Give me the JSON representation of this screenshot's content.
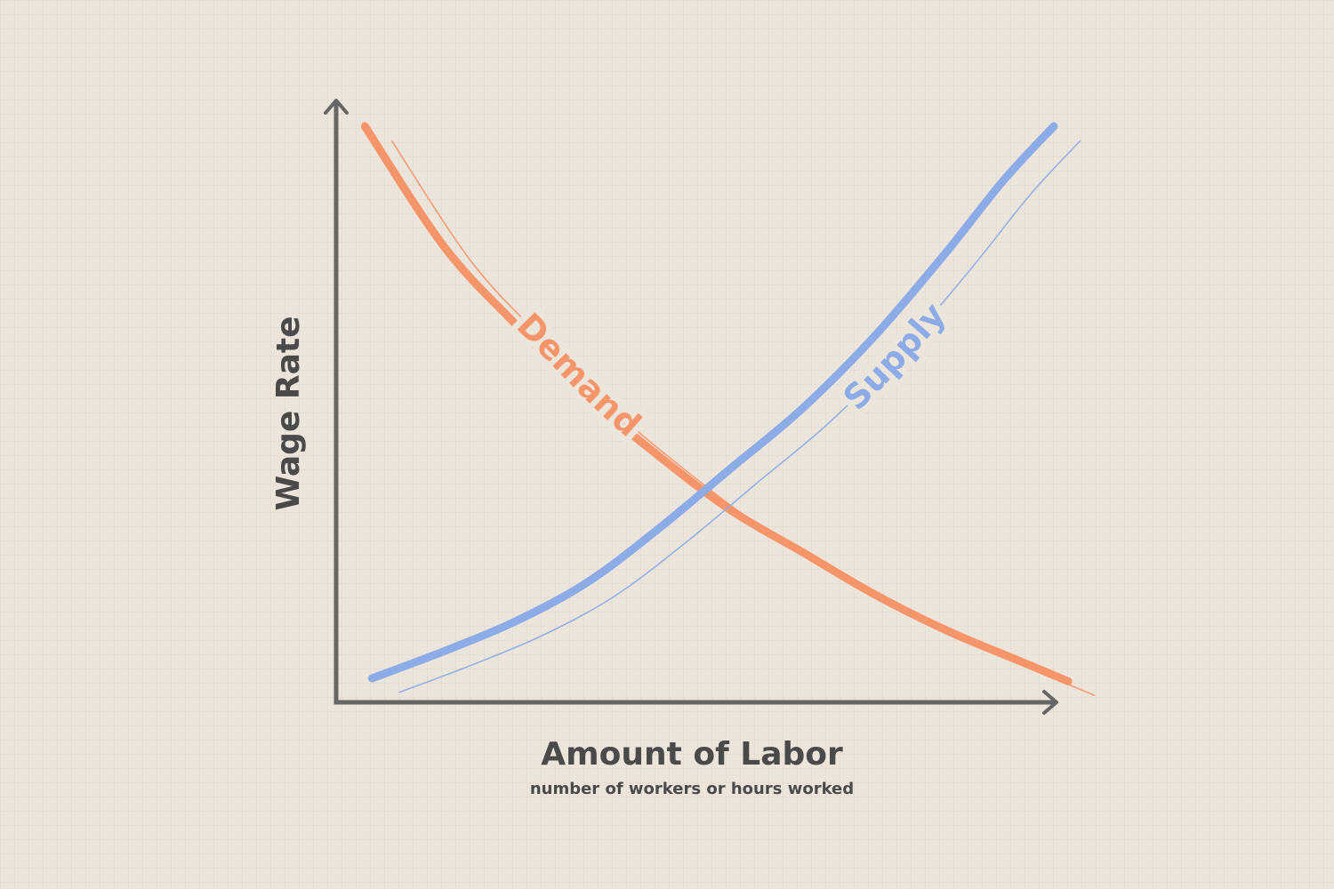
{
  "chart_data": {
    "type": "line",
    "title": "",
    "xlabel": "Amount of Labor",
    "xlabel_sub": "number of workers or hours worked",
    "ylabel": "Wage Rate",
    "xlim": [
      0,
      10
    ],
    "ylim": [
      0,
      10
    ],
    "grid": false,
    "legend": "none",
    "series": [
      {
        "name": "Demand",
        "color": "#f7956a",
        "x": [
          0.4,
          1.5,
          2.5,
          3.5,
          4.5,
          5.5,
          6.5,
          7.5,
          8.5,
          9.5,
          10.2
        ],
        "y": [
          9.6,
          7.6,
          6.3,
          5.1,
          4.1,
          3.2,
          2.5,
          1.8,
          1.2,
          0.7,
          0.35
        ]
      },
      {
        "name": "Supply",
        "color": "#8dabe6",
        "x": [
          0.5,
          1.5,
          2.5,
          3.5,
          4.5,
          5.5,
          6.5,
          7.5,
          8.5,
          9.3,
          10.0
        ],
        "y": [
          0.4,
          0.85,
          1.35,
          2.0,
          2.9,
          3.9,
          4.9,
          6.1,
          7.5,
          8.7,
          9.6
        ]
      }
    ]
  }
}
